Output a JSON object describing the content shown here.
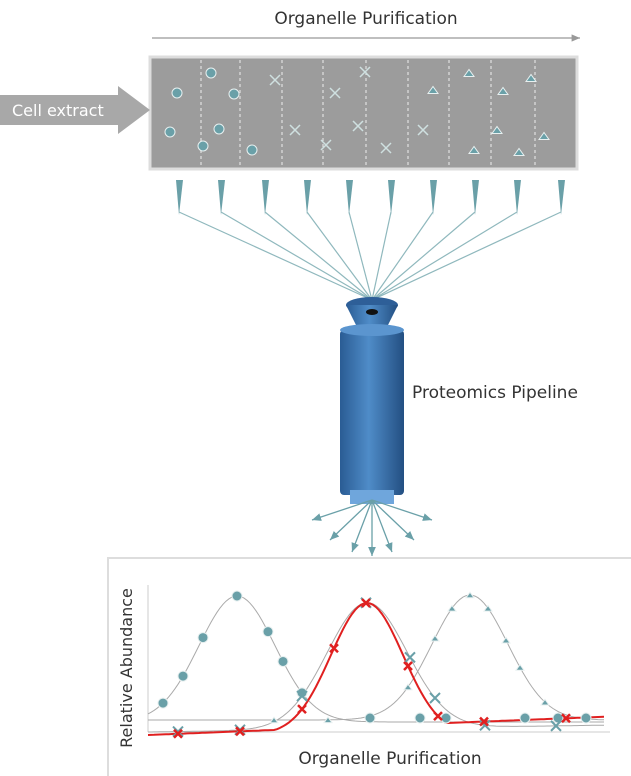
{
  "header": {
    "title": "Organelle Purification"
  },
  "input": {
    "label": "Cell extract"
  },
  "pipeline": {
    "label": "Proteomics Pipeline"
  },
  "plot": {
    "y_label": "Relative Abundance",
    "x_label": "Organelle Purification"
  }
}
